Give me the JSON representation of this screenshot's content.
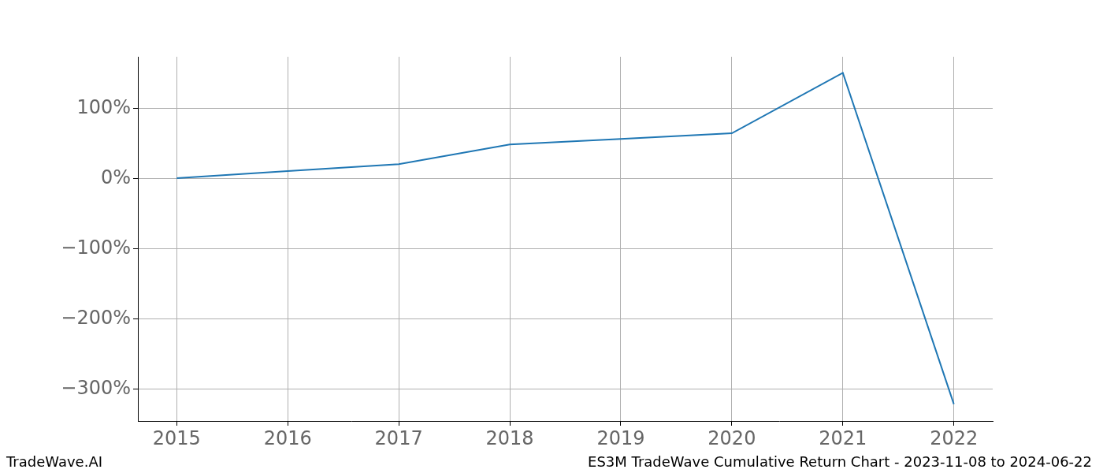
{
  "chart_data": {
    "type": "line",
    "title": "ES3M TradeWave Cumulative Return Chart - 2023-11-08 to 2024-06-22",
    "source": "TradeWave.AI",
    "x": [
      2015,
      2016,
      2017,
      2018,
      2019,
      2020,
      2021,
      2022
    ],
    "values": [
      1,
      11,
      21,
      49,
      57,
      65,
      151,
      -321
    ],
    "color": "#1f77b4",
    "xlim": [
      2014.65,
      2022.35
    ],
    "xticks": [
      2015,
      2016,
      2017,
      2018,
      2019,
      2020,
      2021,
      2022
    ],
    "ylim": [
      -345,
      174
    ],
    "yticks": [
      {
        "value": -300,
        "label": "−300%"
      },
      {
        "value": -200,
        "label": "−200%"
      },
      {
        "value": -100,
        "label": "−100%"
      },
      {
        "value": 0,
        "label": "0%"
      },
      {
        "value": 100,
        "label": "100%"
      }
    ],
    "grid": true
  }
}
